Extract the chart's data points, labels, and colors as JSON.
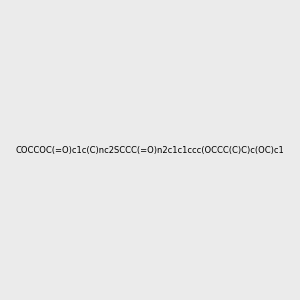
{
  "smiles": "COCCO C(=O)c1c(C)nc2SCCC(=O)n2c1c1ccc(OCCC(C)C)c(OC)c1",
  "smiles_clean": "COCCOC(=O)c1c(C)nc2SCCC(=O)n2c1c1ccc(OCCC(C)C)c(OC)c1",
  "background_color": "#ebebeb",
  "bond_color": "#2d2d2d",
  "atom_colors": {
    "O": "#ff0000",
    "N": "#0000ff",
    "S": "#cccc00"
  },
  "figsize": [
    3.0,
    3.0
  ],
  "dpi": 100,
  "title": ""
}
